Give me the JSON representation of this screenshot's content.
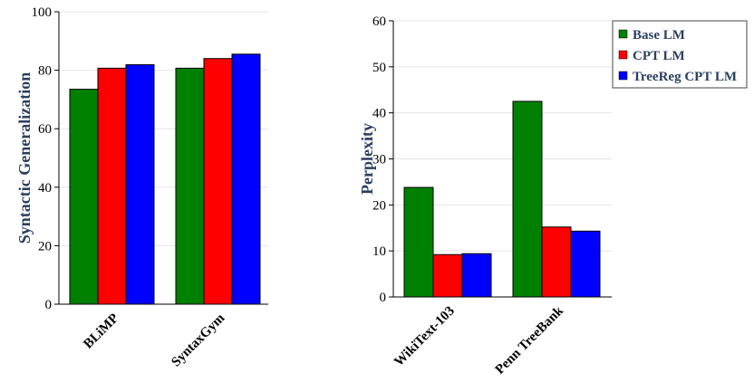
{
  "chart_data": [
    {
      "type": "bar",
      "categories": [
        "BLiMP",
        "SyntaxGym"
      ],
      "series": [
        {
          "name": "Base LM",
          "values": [
            73.5,
            80.7
          ]
        },
        {
          "name": "CPT LM",
          "values": [
            80.7,
            84.0
          ]
        },
        {
          "name": "TreeReg CPT LM",
          "values": [
            81.9,
            85.5
          ]
        }
      ],
      "ylabel": "Syntactic Generalization",
      "ylim": [
        0,
        100
      ],
      "yticks": [
        0,
        20,
        40,
        60,
        80,
        100
      ],
      "grid": true
    },
    {
      "type": "bar",
      "categories": [
        "WikiText-103",
        "Penn TreeBank"
      ],
      "series": [
        {
          "name": "Base LM",
          "values": [
            23.8,
            42.5
          ]
        },
        {
          "name": "CPT LM",
          "values": [
            9.2,
            15.2
          ]
        },
        {
          "name": "TreeReg CPT LM",
          "values": [
            9.4,
            14.3
          ]
        }
      ],
      "ylabel": "Perplexity",
      "ylim": [
        0,
        60
      ],
      "yticks": [
        0,
        10,
        20,
        30,
        40,
        50,
        60
      ],
      "grid": true
    }
  ],
  "legend": {
    "placement": "top-right",
    "items": [
      {
        "name": "Base LM",
        "color": "#008000"
      },
      {
        "name": "CPT LM",
        "color": "#ff0000"
      },
      {
        "name": "TreeReg CPT LM",
        "color": "#0000ff"
      }
    ]
  }
}
